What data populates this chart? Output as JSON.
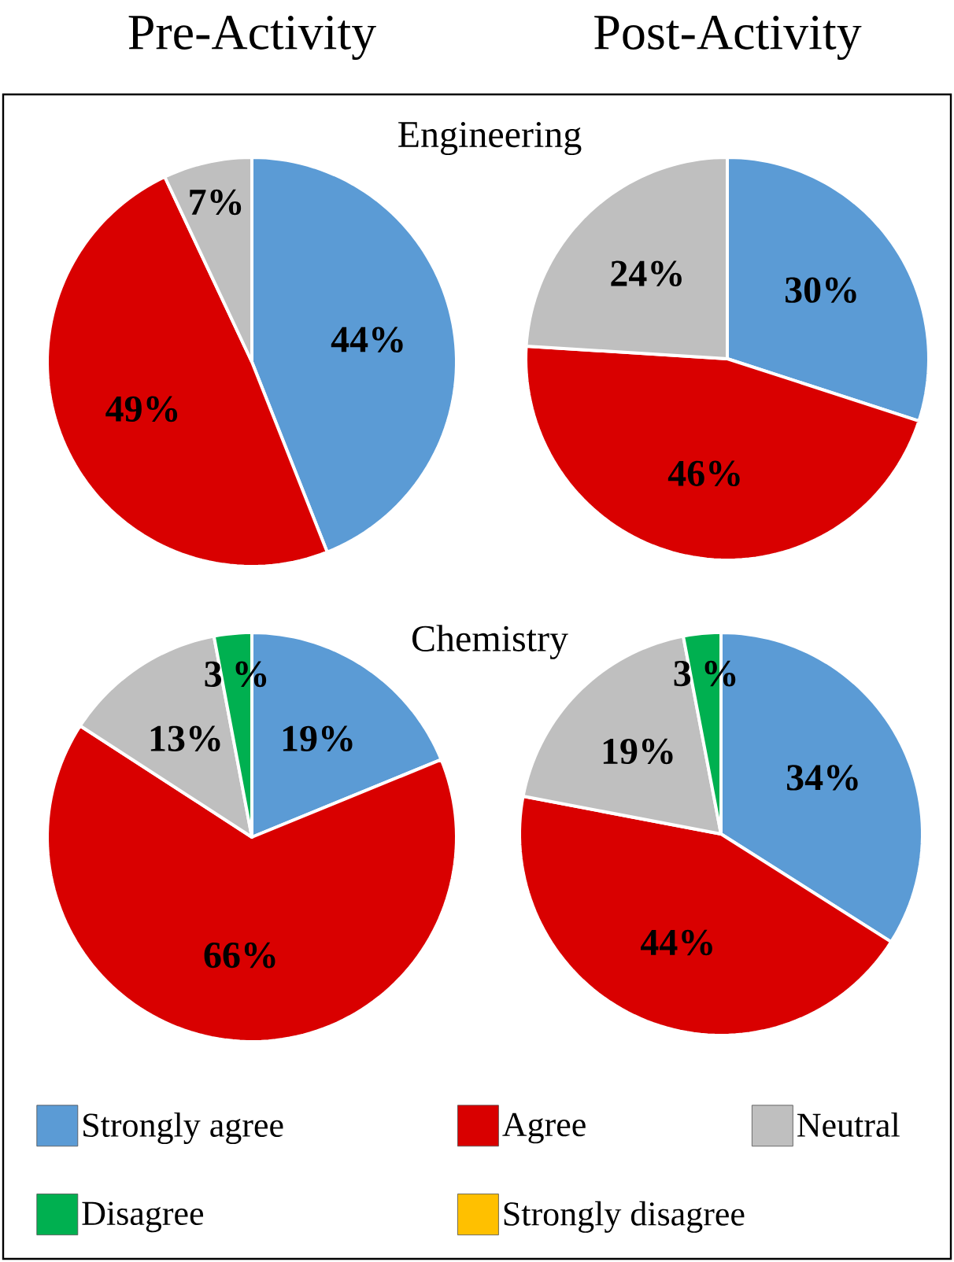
{
  "chart_data": [
    {
      "type": "pie",
      "title": "Pre-Activity",
      "annotations": [
        "Engineering"
      ],
      "categories": [
        null,
        null,
        null,
        null,
        null
      ],
      "values": [
        44,
        49,
        7,
        0,
        0
      ],
      "value_labels": [
        "44%",
        "49%",
        "7%",
        null,
        null
      ],
      "colors": [
        "#5b9bd5",
        "#d90000",
        "#bfbfbf",
        "#00b050",
        "#ffc000"
      ],
      "legend": false
    },
    {
      "type": "pie",
      "title": "Post-Activity",
      "categories": [
        null,
        null,
        null,
        null,
        null
      ],
      "values": [
        30,
        46,
        24,
        0,
        0
      ],
      "value_labels": [
        "30%",
        "46%",
        "24%",
        null,
        null
      ],
      "colors": [
        "#5b9bd5",
        "#d90000",
        "#bfbfbf",
        "#00b050",
        "#ffc000"
      ],
      "legend": false
    },
    {
      "type": "pie",
      "annotations": [
        "Chemistry"
      ],
      "categories": [
        null,
        null,
        null,
        null,
        null
      ],
      "values": [
        19,
        66,
        13,
        3,
        0
      ],
      "value_labels": [
        "19%",
        "66%",
        "13%",
        "3 %",
        null
      ],
      "colors": [
        "#5b9bd5",
        "#d90000",
        "#bfbfbf",
        "#00b050",
        "#ffc000"
      ],
      "legend": false
    },
    {
      "type": "pie",
      "categories": [
        "Strongly agree",
        "Agree",
        "Neutral",
        "Disagree",
        "Strongly disagree"
      ],
      "values": [
        34,
        44,
        19,
        3,
        0
      ],
      "value_labels": [
        "34%",
        "44%",
        "19%",
        "3 %",
        null
      ],
      "colors": [
        "#5b9bd5",
        "#d90000",
        "#bfbfbf",
        "#00b050",
        "#ffc000"
      ],
      "legend": "bottom"
    }
  ]
}
